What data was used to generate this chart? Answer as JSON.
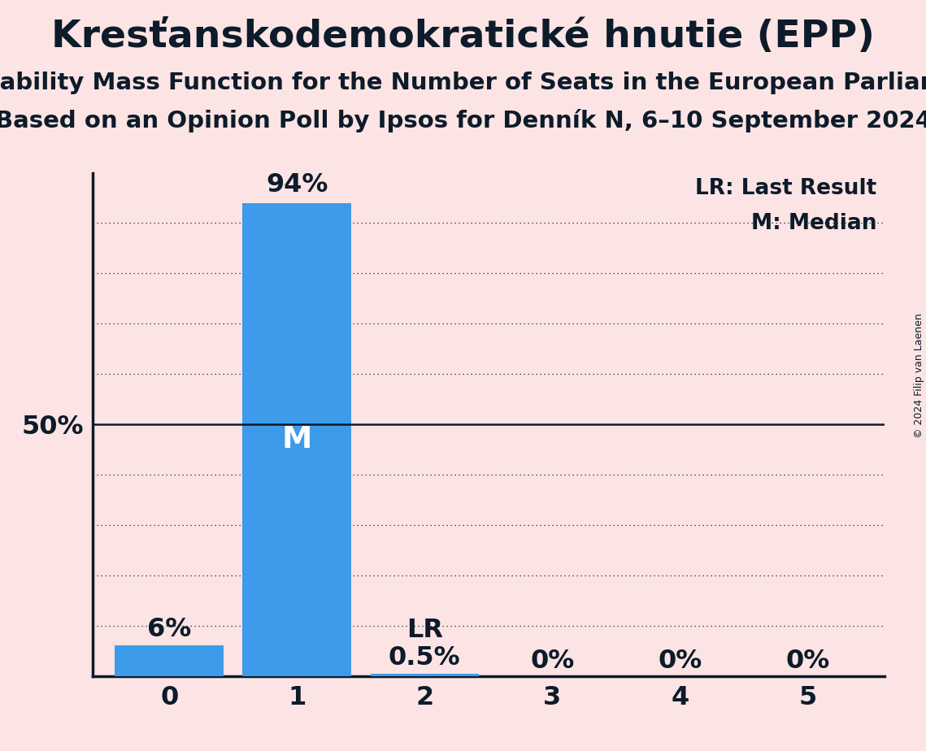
{
  "title": "Kresťanskodemokratické hnutie (EPP)",
  "subtitle1": "Probability Mass Function for the Number of Seats in the European Parliament",
  "subtitle2": "Based on an Opinion Poll by Ipsos for Denník N, 6–10 September 2024",
  "copyright": "© 2024 Filip van Laenen",
  "categories": [
    0,
    1,
    2,
    3,
    4,
    5
  ],
  "values": [
    0.06,
    0.94,
    0.005,
    0.0,
    0.0,
    0.0
  ],
  "bar_color": "#3d9be9",
  "background_color": "#fce4e4",
  "median_seat": 1,
  "last_result_seat": 2,
  "ylabel_50": "50%",
  "bar_labels": [
    "6%",
    "94%",
    "0.5%",
    "0%",
    "0%",
    "0%"
  ],
  "grid_lines": [
    0.1,
    0.2,
    0.3,
    0.4,
    0.5,
    0.6,
    0.7,
    0.8,
    0.9
  ],
  "text_color": "#0d1b2a",
  "title_fontsize": 34,
  "subtitle_fontsize": 21,
  "label_fontsize": 23,
  "tick_fontsize": 23,
  "legend_fontsize": 19,
  "copyright_fontsize": 9,
  "ylim": [
    0,
    1.0
  ]
}
